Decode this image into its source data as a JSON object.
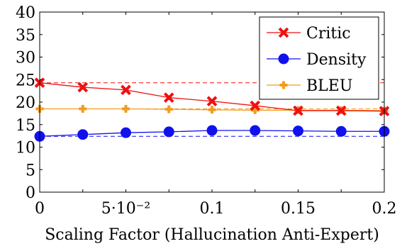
{
  "chart_data": {
    "type": "line",
    "title": "",
    "xlabel": "Scaling Factor (Hallucination Anti-Expert)",
    "ylabel": "",
    "xlim": [
      0,
      0.2
    ],
    "ylim": [
      0,
      40
    ],
    "x": [
      0,
      0.025,
      0.05,
      0.075,
      0.1,
      0.125,
      0.15,
      0.175,
      0.2
    ],
    "x_ticks": [
      0,
      0.05,
      0.1,
      0.15,
      0.2
    ],
    "x_tick_labels": [
      "0",
      "5·10⁻²",
      "0.1",
      "0.15",
      "0.2"
    ],
    "y_ticks": [
      0,
      5,
      10,
      15,
      20,
      25,
      30,
      35,
      40
    ],
    "y_tick_labels": [
      "0",
      "5",
      "10",
      "15",
      "20",
      "25",
      "30",
      "35",
      "40"
    ],
    "grid": false,
    "legend_position": "top-right",
    "series": [
      {
        "name": "Critic",
        "color": "#ee1111",
        "marker": "cross",
        "values": [
          24.3,
          23.3,
          22.7,
          21.0,
          20.2,
          19.2,
          18.1,
          18.1,
          18.0
        ],
        "baseline": 24.3
      },
      {
        "name": "Density",
        "color": "#1111ee",
        "marker": "circle",
        "values": [
          12.4,
          12.8,
          13.2,
          13.4,
          13.7,
          13.7,
          13.6,
          13.5,
          13.5
        ],
        "baseline": 12.4
      },
      {
        "name": "BLEU",
        "color": "#f39c1f",
        "marker": "plus",
        "values": [
          18.5,
          18.5,
          18.5,
          18.4,
          18.3,
          18.2,
          18.2,
          18.2,
          18.1
        ],
        "baseline": 18.5
      }
    ]
  }
}
